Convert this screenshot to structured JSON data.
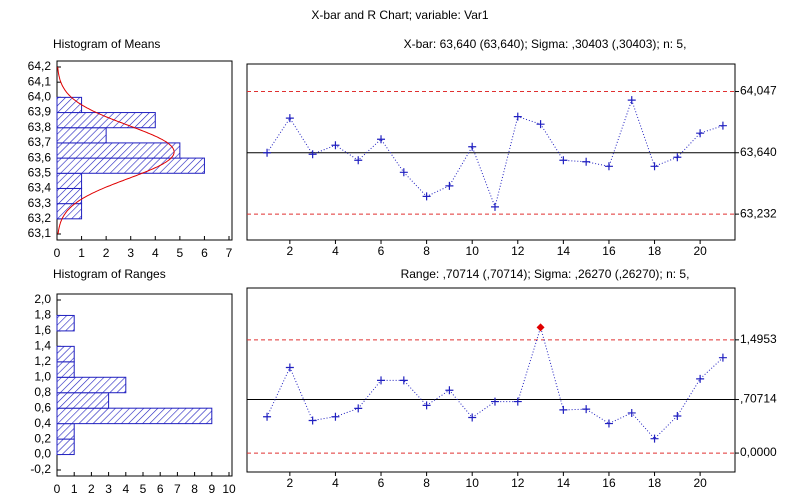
{
  "title": "X-bar and R Chart; variable:  Var1",
  "chart_data": [
    {
      "type": "histogram",
      "title": "Histogram of Means",
      "orientation": "horizontal",
      "color": "#2020c0",
      "bins": [
        63.2,
        63.3,
        63.4,
        63.5,
        63.6,
        63.7,
        63.8,
        63.9,
        64.0
      ],
      "counts": [
        1,
        1,
        1,
        6,
        5,
        2,
        4,
        1
      ],
      "normal_curve_color": "#e00000",
      "ylim": [
        63.1,
        64.2
      ],
      "yticks": [
        {
          "value": 64.2,
          "label": "64,2"
        },
        {
          "value": 64.1,
          "label": "64,1"
        },
        {
          "value": 64.0,
          "label": "64,0"
        },
        {
          "value": 63.9,
          "label": "63,9"
        },
        {
          "value": 63.8,
          "label": "63,8"
        },
        {
          "value": 63.7,
          "label": "63,7"
        },
        {
          "value": 63.6,
          "label": "63,6"
        },
        {
          "value": 63.5,
          "label": "63,5"
        },
        {
          "value": 63.4,
          "label": "63,4"
        },
        {
          "value": 63.3,
          "label": "63,3"
        },
        {
          "value": 63.2,
          "label": "63,2"
        },
        {
          "value": 63.1,
          "label": "63,1"
        }
      ],
      "xlim": [
        0,
        7
      ],
      "xticks": [
        0,
        1,
        2,
        3,
        4,
        5,
        6,
        7
      ]
    },
    {
      "type": "line",
      "title": "X-bar: 63,640 (63,640); Sigma: ,30403 (,30403); n: 5,",
      "color": "#2020c0",
      "out_of_control_color": "#e00000",
      "x": [
        1,
        2,
        3,
        4,
        5,
        6,
        7,
        8,
        9,
        10,
        11,
        12,
        13,
        14,
        15,
        16,
        17,
        18,
        19,
        20,
        21
      ],
      "values": [
        63.64,
        63.87,
        63.63,
        63.69,
        63.59,
        63.73,
        63.51,
        63.35,
        63.42,
        63.68,
        63.28,
        63.88,
        63.83,
        63.59,
        63.58,
        63.55,
        63.99,
        63.55,
        63.61,
        63.77,
        63.82
      ],
      "xlim": [
        0.12,
        21.53
      ],
      "xticks": [
        2,
        4,
        6,
        8,
        10,
        12,
        14,
        16,
        18,
        20
      ],
      "ylim": [
        63.06,
        64.23
      ],
      "yticks": [
        {
          "value": 64.047,
          "label": "64,047",
          "line": "dashed",
          "color": "#e03030"
        },
        {
          "value": 63.64,
          "label": "63,640",
          "line": "solid",
          "color": "#000000"
        },
        {
          "value": 63.232,
          "label": "63,232",
          "line": "dashed",
          "color": "#e03030"
        }
      ]
    },
    {
      "type": "histogram",
      "title": "Histogram of Ranges",
      "orientation": "horizontal",
      "color": "#2020c0",
      "bins": [
        0,
        0.2,
        0.4,
        0.6,
        0.8,
        1.0,
        1.2,
        1.4,
        1.6,
        1.8
      ],
      "counts": [
        1,
        1,
        9,
        3,
        4,
        1,
        1,
        0,
        1
      ],
      "ylim": [
        -0.2,
        2.0
      ],
      "yticks": [
        {
          "value": 2.0,
          "label": "2,0"
        },
        {
          "value": 1.8,
          "label": "1,8"
        },
        {
          "value": 1.6,
          "label": "1,6"
        },
        {
          "value": 1.4,
          "label": "1,4"
        },
        {
          "value": 1.2,
          "label": "1,2"
        },
        {
          "value": 1.0,
          "label": "1,0"
        },
        {
          "value": 0.8,
          "label": "0,8"
        },
        {
          "value": 0.6,
          "label": "0,6"
        },
        {
          "value": 0.4,
          "label": "0,4"
        },
        {
          "value": 0.2,
          "label": "0,2"
        },
        {
          "value": 0.0,
          "label": "0,0"
        },
        {
          "value": -0.2,
          "label": "-0,2"
        }
      ],
      "xlim": [
        0,
        10
      ],
      "xticks": [
        0,
        1,
        2,
        3,
        4,
        5,
        6,
        7,
        8,
        9,
        10
      ]
    },
    {
      "type": "line",
      "title": "Range: ,70714 (,70714); Sigma: ,26270 (,26270); n: 5,",
      "color": "#2020c0",
      "out_of_control_color": "#e00000",
      "x": [
        1,
        2,
        3,
        4,
        5,
        6,
        7,
        8,
        9,
        10,
        11,
        12,
        13,
        14,
        15,
        16,
        17,
        18,
        19,
        20,
        21
      ],
      "values": [
        0.48,
        1.13,
        0.43,
        0.48,
        0.59,
        0.96,
        0.96,
        0.63,
        0.83,
        0.47,
        0.68,
        0.68,
        1.66,
        0.57,
        0.58,
        0.39,
        0.53,
        0.19,
        0.49,
        0.98,
        1.26
      ],
      "xlim": [
        0.12,
        21.53
      ],
      "xticks": [
        2,
        4,
        6,
        8,
        10,
        12,
        14,
        16,
        18,
        20
      ],
      "ylim": [
        -0.25,
        2.18
      ],
      "yticks": [
        {
          "value": 1.4953,
          "label": "1,4953",
          "line": "dashed",
          "color": "#e03030"
        },
        {
          "value": 0.70714,
          "label": ",70714",
          "line": "solid",
          "color": "#000000"
        },
        {
          "value": 0,
          "label": "0,0000",
          "line": "dashed",
          "color": "#e03030"
        }
      ]
    }
  ]
}
